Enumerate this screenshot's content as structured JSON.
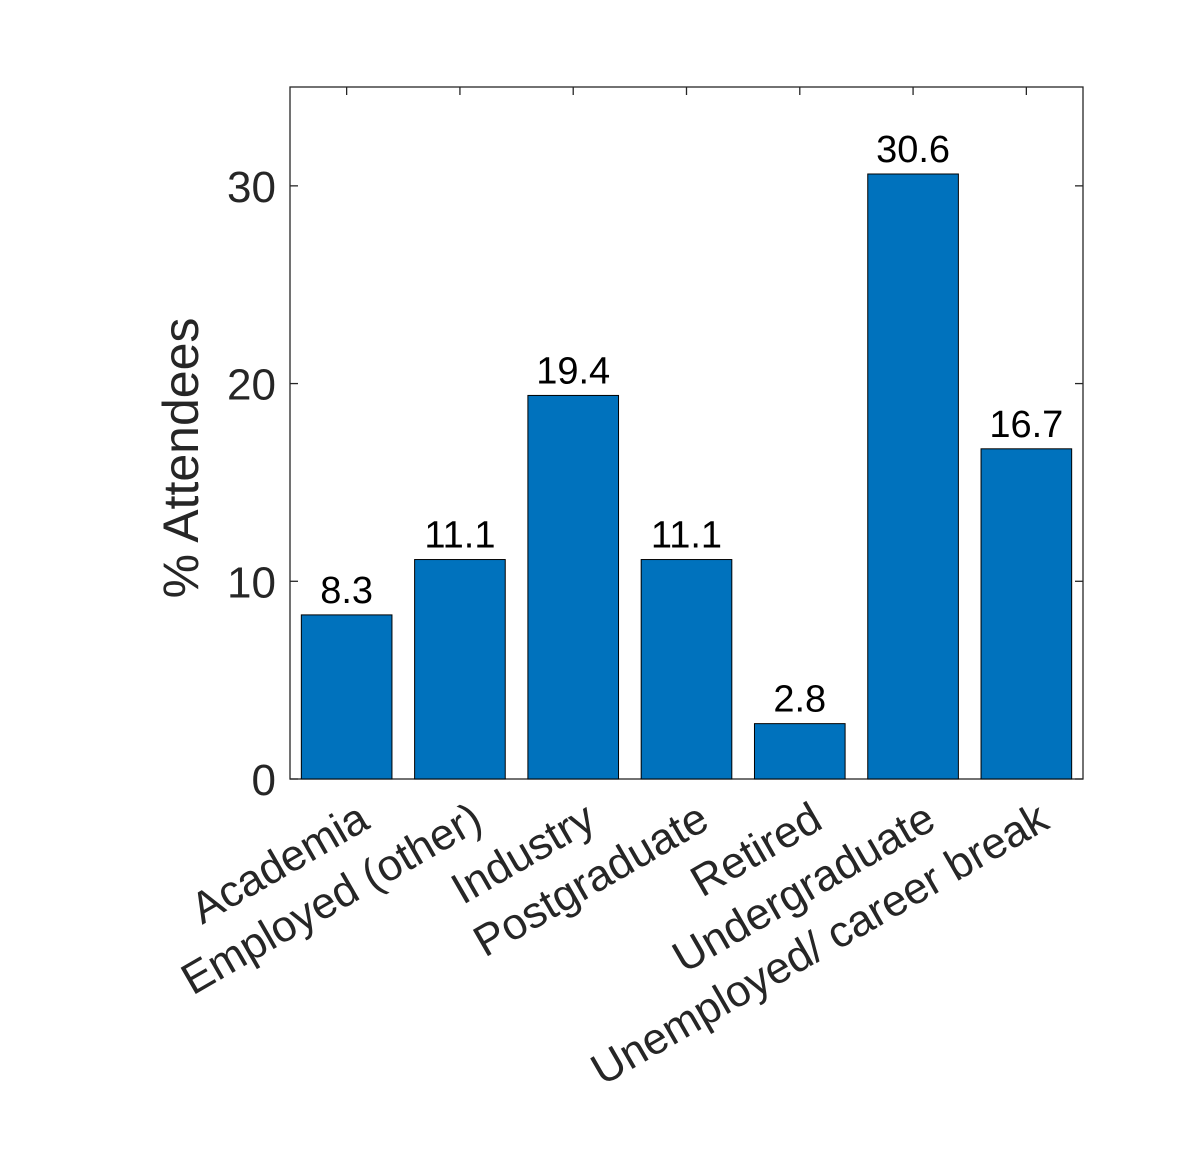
{
  "chart_data": {
    "type": "bar",
    "categories": [
      "Academia",
      "Employed (other)",
      "Industry",
      "Postgraduate",
      "Retired",
      "Undergraduate",
      "Unemployed/ career break"
    ],
    "values": [
      8.3,
      11.1,
      19.4,
      11.1,
      2.8,
      30.6,
      16.7
    ],
    "data_labels": [
      "8.3",
      "11.1",
      "19.4",
      "11.1",
      "2.8",
      "30.6",
      "16.7"
    ],
    "ylabel": "% Attendees",
    "xlabel": "",
    "ylim": [
      0,
      35
    ],
    "yticks": [
      0,
      10,
      20,
      30
    ],
    "ytick_labels": [
      "0",
      "10",
      "20",
      "30"
    ],
    "grid": false,
    "bar_color": "#0072BD",
    "axis_color": "#262626"
  }
}
